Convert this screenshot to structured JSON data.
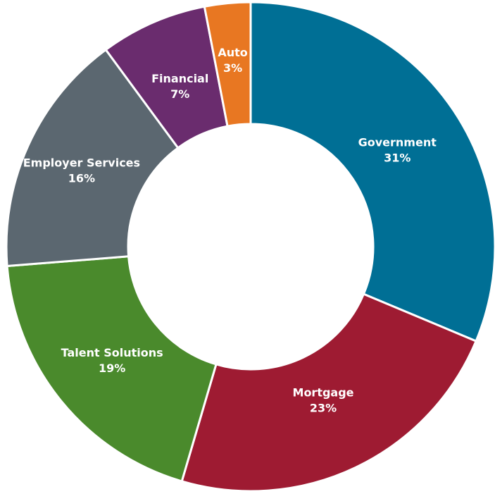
{
  "chart_data": {
    "type": "pie",
    "title": "",
    "categories": [
      "Government",
      "Mortgage",
      "Talent Solutions",
      "Employer Services",
      "Financial",
      "Auto"
    ],
    "values": [
      31,
      23,
      19,
      16,
      7,
      3
    ],
    "value_labels": [
      "31%",
      "23%",
      "19%",
      "16%",
      "7%",
      "3%"
    ],
    "colors": [
      "#006f95",
      "#9e1b32",
      "#4a8a2c",
      "#5b6770",
      "#6a2c6e",
      "#e87722"
    ],
    "style": "donut",
    "legend": "none",
    "labels_on_slices": true
  }
}
